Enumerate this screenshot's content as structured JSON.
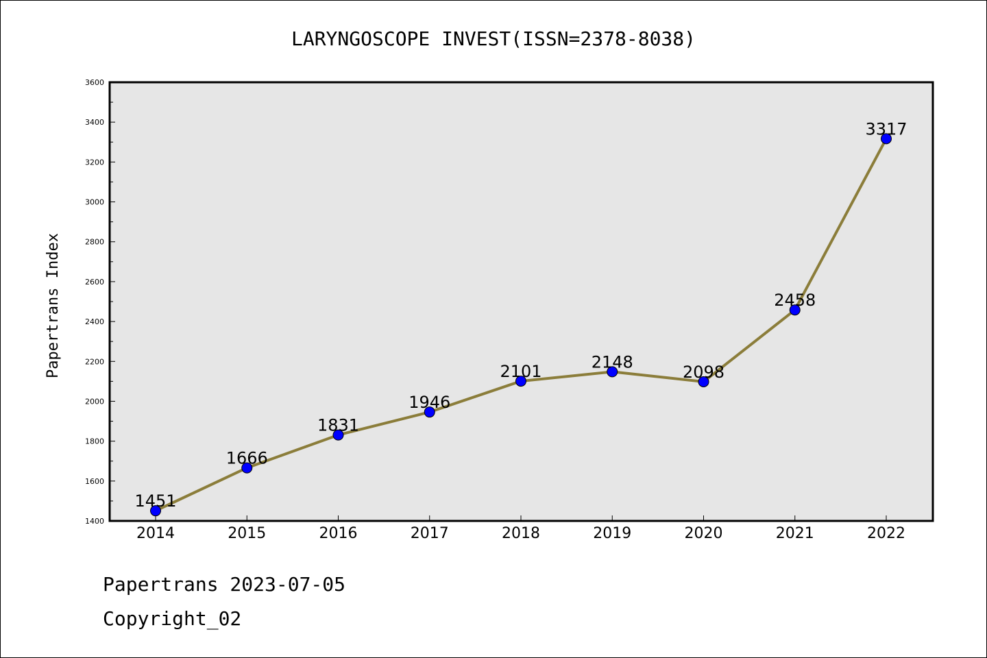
{
  "chart_data": {
    "type": "line",
    "title": "LARYNGOSCOPE INVEST(ISSN=2378-8038)",
    "xlabel": "",
    "ylabel": "Papertrans Index",
    "categories": [
      "2014",
      "2015",
      "2016",
      "2017",
      "2018",
      "2019",
      "2020",
      "2021",
      "2022"
    ],
    "values": [
      1451,
      1666,
      1831,
      1946,
      2101,
      2148,
      2098,
      2458,
      3317
    ],
    "data_labels": [
      "1451",
      "1666",
      "1831",
      "1946",
      "2101",
      "2148",
      "2098",
      "2458",
      "3317"
    ],
    "ylim": [
      1400,
      3600
    ],
    "yticks": [
      1400,
      1600,
      1800,
      2000,
      2200,
      2400,
      2600,
      2800,
      3000,
      3200,
      3400,
      3600
    ],
    "ytick_labels": [
      "1400",
      "1600",
      "1800",
      "2000",
      "2200",
      "2400",
      "2600",
      "2800",
      "3000",
      "3200",
      "3400",
      "3600"
    ],
    "grid": false,
    "colors": {
      "line": "#8b7d3a",
      "marker": "#0000ff",
      "plot_background": "#e6e6e6"
    }
  },
  "footer": {
    "date_text": "Papertrans 2023-07-05",
    "copyright_text": "Copyright_02"
  }
}
